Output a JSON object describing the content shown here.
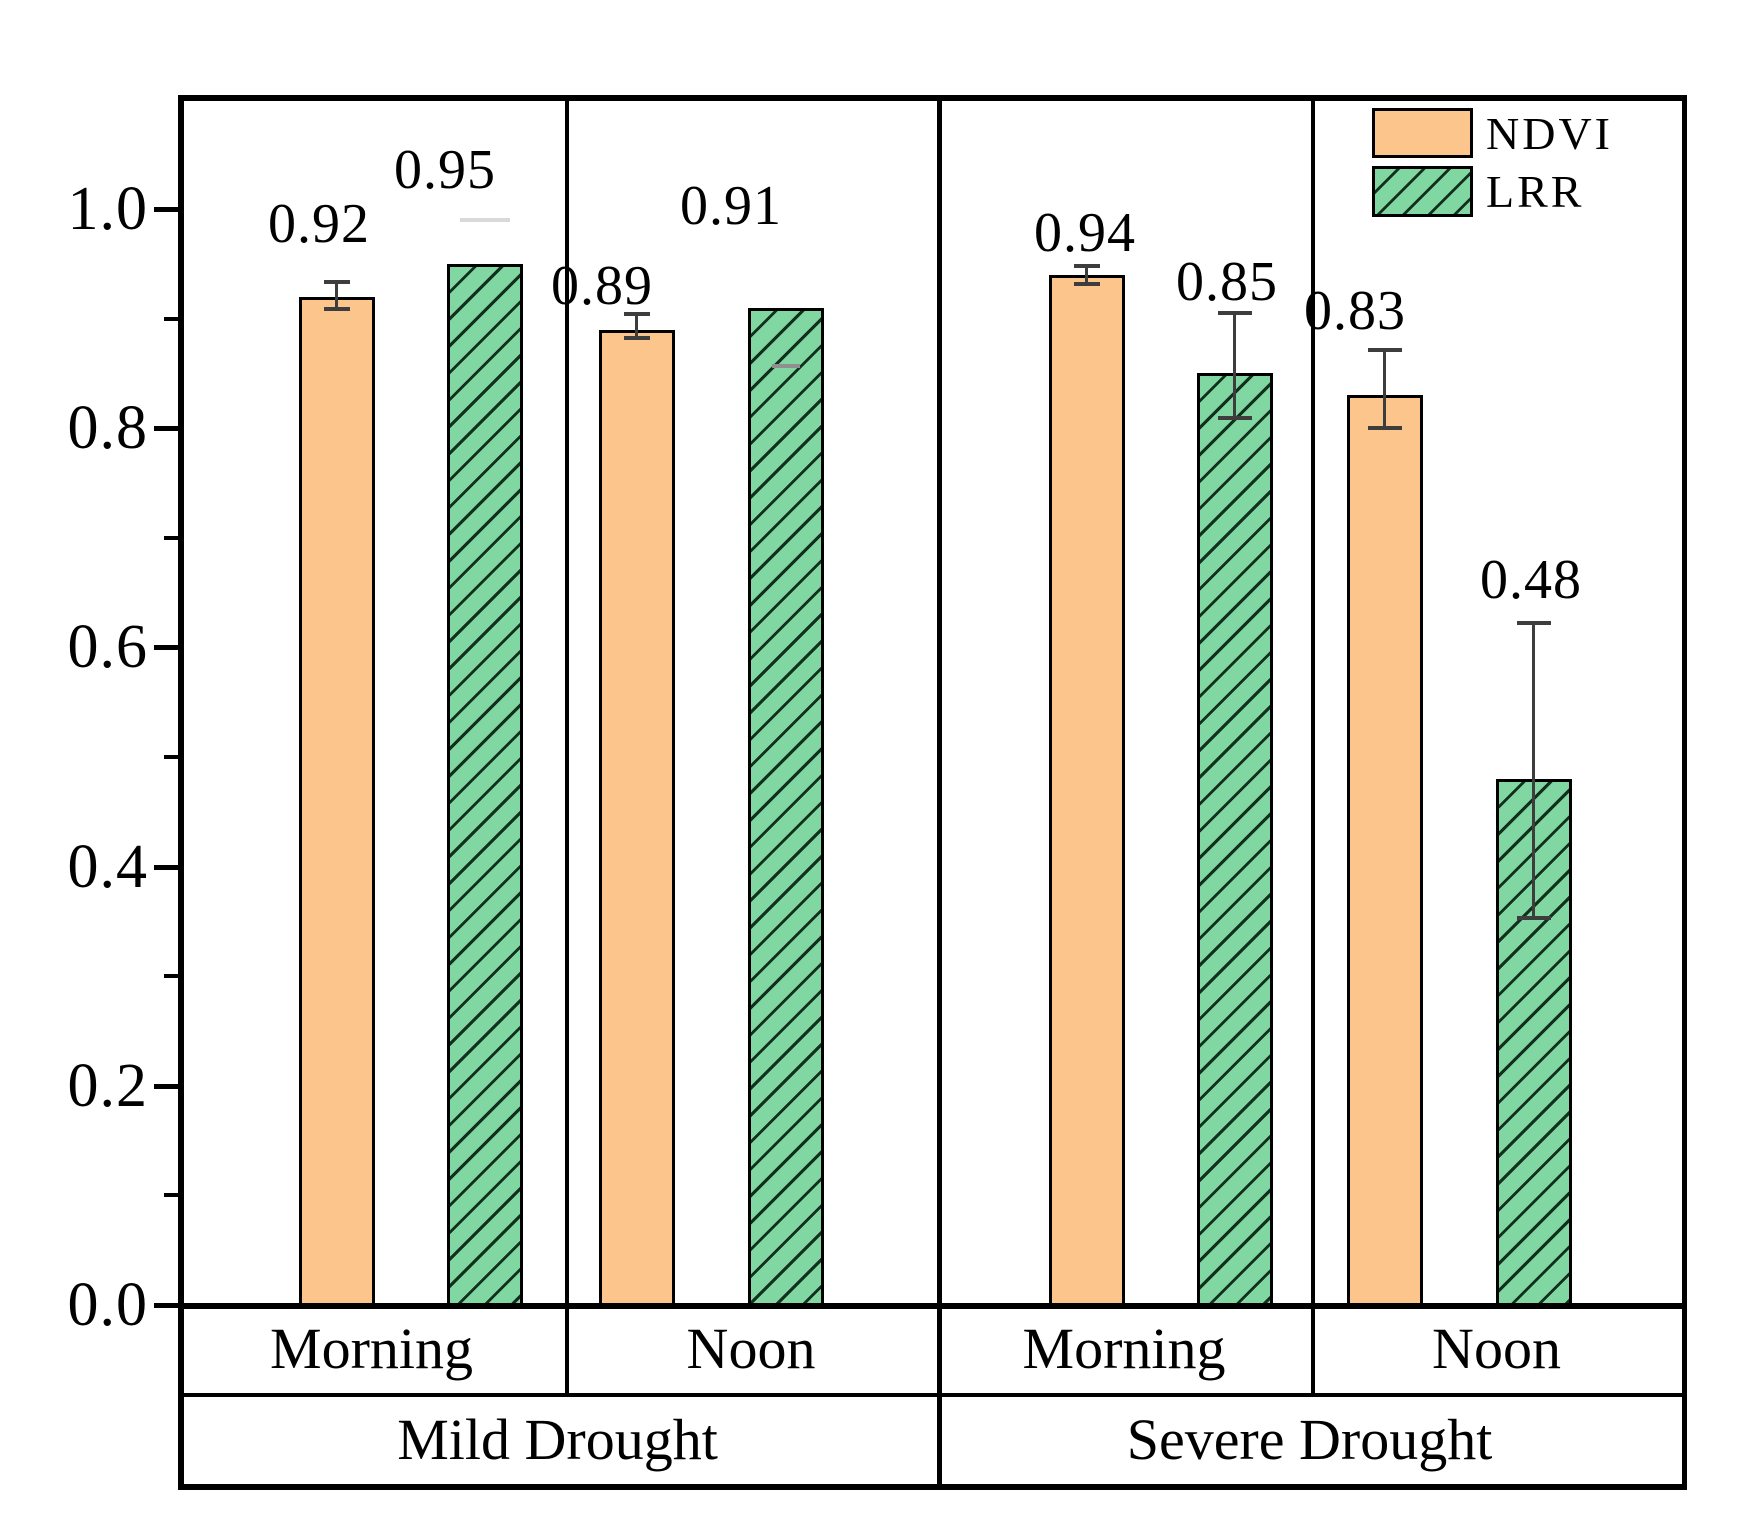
{
  "chart_data": {
    "type": "bar",
    "title": "",
    "xlabel": "",
    "ylabel": "",
    "ylim": [
      0,
      1.1
    ],
    "grid": false,
    "yticks": [
      {
        "value": 0.0,
        "label": "0.0"
      },
      {
        "value": 0.2,
        "label": "0.2"
      },
      {
        "value": 0.4,
        "label": "0.4"
      },
      {
        "value": 0.6,
        "label": "0.6"
      },
      {
        "value": 0.8,
        "label": "0.8"
      },
      {
        "value": 1.0,
        "label": "1.0"
      }
    ],
    "minor_yticks": [
      0.1,
      0.3,
      0.5,
      0.7,
      0.9
    ],
    "categories": [
      "Morning",
      "Noon",
      "Morning",
      "Noon"
    ],
    "category_groups": [
      {
        "label": "Mild Drought",
        "span": 2
      },
      {
        "label": "Severe Drought",
        "span": 2
      }
    ],
    "legend": {
      "position": "top-right",
      "entries": [
        "NDVI",
        "LRR"
      ]
    },
    "series": [
      {
        "name": "NDVI",
        "fill": "#fbc58c",
        "hatch": "none",
        "values": [
          0.92,
          0.89,
          0.94,
          0.83
        ],
        "data_labels": [
          "0.92",
          "0.89",
          "0.94",
          "0.83"
        ],
        "error_bars": [
          {
            "plus": 0.013,
            "minus": 0.011
          },
          {
            "plus": 0.014,
            "minus": 0.008
          },
          {
            "plus": 0.008,
            "minus": 0.008
          },
          {
            "plus": 0.041,
            "minus": 0.03
          }
        ]
      },
      {
        "name": "LRR",
        "fill": "#80d7a1",
        "hatch": "diagonal-forward",
        "values": [
          0.95,
          0.91,
          0.85,
          0.48
        ],
        "data_labels": [
          "0.95",
          "0.91",
          "0.85",
          "0.48"
        ],
        "error_bars": [
          {
            "plus": 0.04,
            "minus": 0.0
          },
          {
            "plus": 0.0,
            "minus": 0.053
          },
          {
            "plus": 0.055,
            "minus": 0.041
          },
          {
            "plus": 0.142,
            "minus": 0.127
          }
        ]
      }
    ],
    "colors": {
      "axis": "#000000",
      "text": "#000000",
      "ndvi_fill": "#fbc58c",
      "lrr_fill": "#80d7a1",
      "hatch_line": "#13301f",
      "error_dark": "#3d3d3d",
      "error_faint": "#d9d9d9",
      "error_gray": "#8f8f8f"
    }
  }
}
